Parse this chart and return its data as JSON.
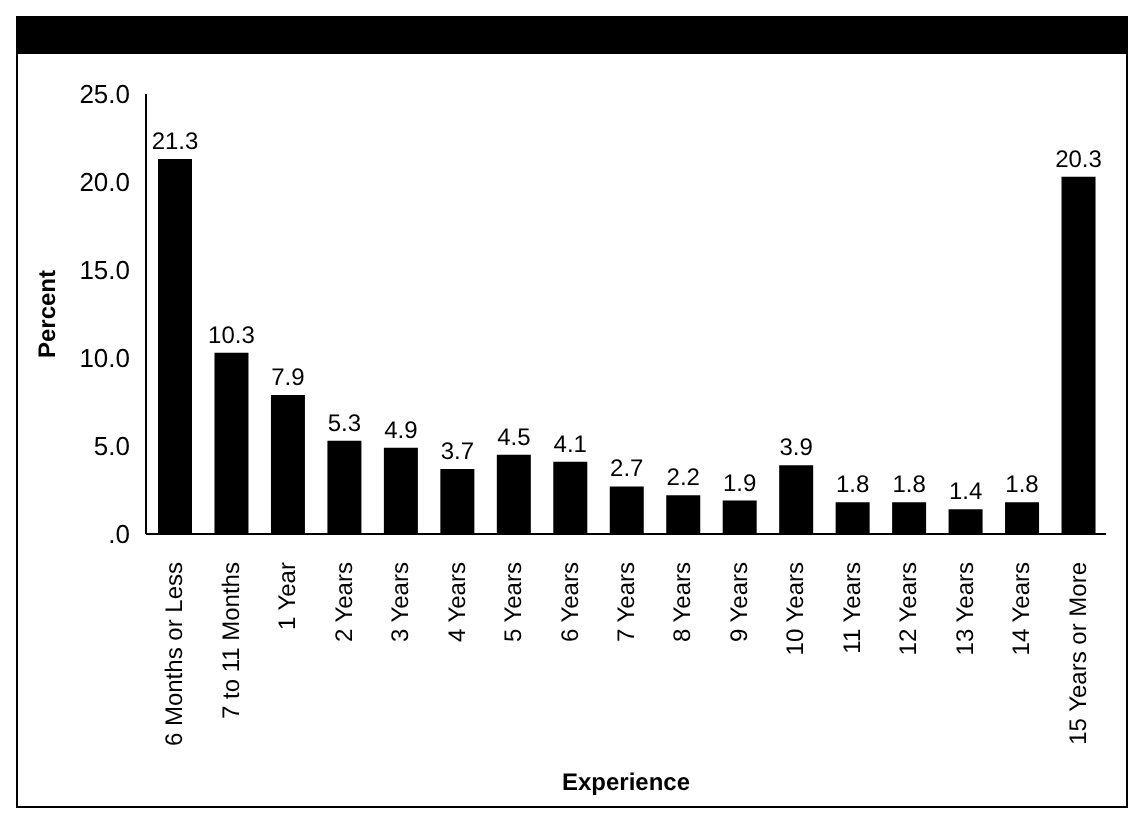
{
  "chart_data": {
    "type": "bar",
    "xlabel": "Experience",
    "ylabel": "Percent",
    "categories": [
      "6 Months or Less",
      "7 to 11 Months",
      "1 Year",
      "2 Years",
      "3 Years",
      "4 Years",
      "5 Years",
      "6 Years",
      "7 Years",
      "8 Years",
      "9 Years",
      "10 Years",
      "11 Years",
      "12 Years",
      "13 Years",
      "14 Years",
      "15 Years or More"
    ],
    "values": [
      21.3,
      10.3,
      7.9,
      5.3,
      4.9,
      3.7,
      4.5,
      4.1,
      2.7,
      2.2,
      1.9,
      3.9,
      1.8,
      1.8,
      1.4,
      1.8,
      20.3
    ],
    "color": "#000000",
    "data_labels": true,
    "ylim": [
      0,
      25
    ],
    "yticks": [
      {
        "value": 0,
        "label": ".0"
      },
      {
        "value": 5,
        "label": "5.0"
      },
      {
        "value": 10,
        "label": "10.0"
      },
      {
        "value": 15,
        "label": "15.0"
      },
      {
        "value": 20,
        "label": "20.0"
      },
      {
        "value": 25,
        "label": "25.0"
      }
    ],
    "grid": false
  }
}
